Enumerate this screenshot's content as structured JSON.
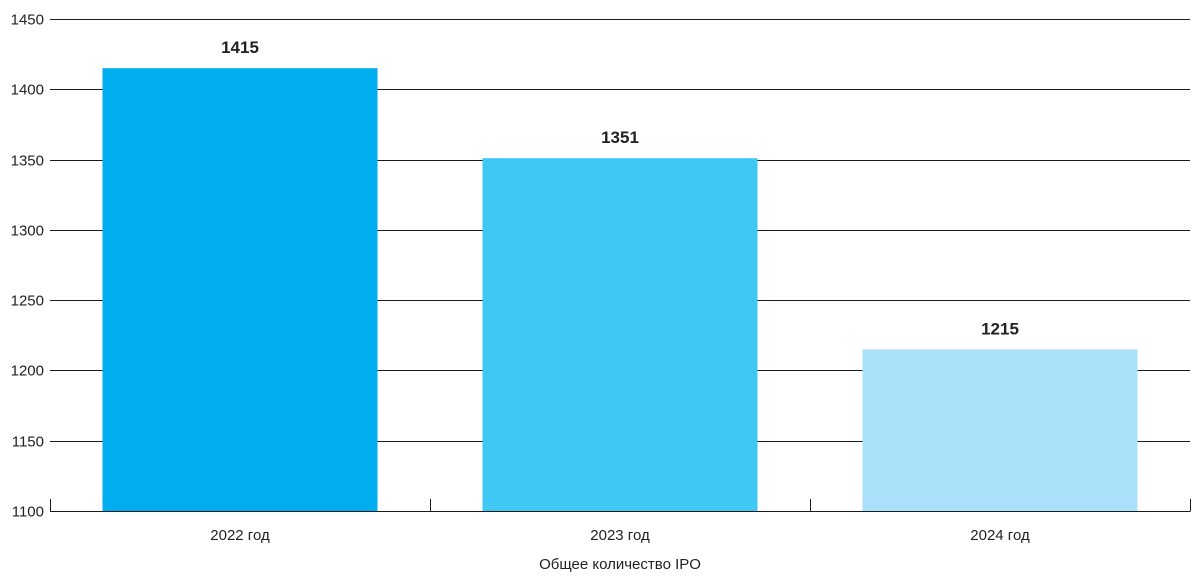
{
  "chart_data": {
    "type": "bar",
    "categories": [
      "2022 год",
      "2023 год",
      "2024 год"
    ],
    "values": [
      1415,
      1351,
      1215
    ],
    "value_labels": [
      "1415",
      "1351",
      "1215"
    ],
    "colors": [
      "#00aeef",
      "#40c8f4",
      "#abe0fa"
    ],
    "title": "",
    "xlabel": "Общее количество IPO",
    "ylabel": "",
    "ylim": [
      1100,
      1450
    ],
    "yticks": [
      1100,
      1150,
      1200,
      1250,
      1300,
      1350,
      1400,
      1450
    ],
    "ytick_labels": [
      "1100",
      "1150",
      "1200",
      "1250",
      "1300",
      "1350",
      "1400",
      "1450"
    ],
    "grid": true,
    "legend": "none"
  }
}
